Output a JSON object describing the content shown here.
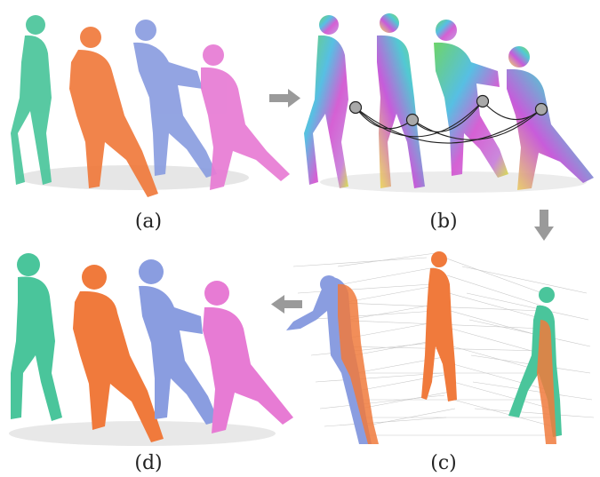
{
  "labels": {
    "a": "(a)",
    "b": "(b)",
    "c": "(c)",
    "d": "(d)"
  },
  "colors": {
    "green": "#4ac59b",
    "orange": "#f07a3c",
    "blue": "#8a9de0",
    "pink": "#e77bd4",
    "arrow": "#9a9a9a",
    "node": "#a9a9a9"
  },
  "panels": [
    {
      "id": "a",
      "content": "point-clouds"
    },
    {
      "id": "b",
      "content": "feature-colored-points-with-graph"
    },
    {
      "id": "c",
      "content": "correspondences"
    },
    {
      "id": "d",
      "content": "reconstructed-meshes"
    }
  ]
}
